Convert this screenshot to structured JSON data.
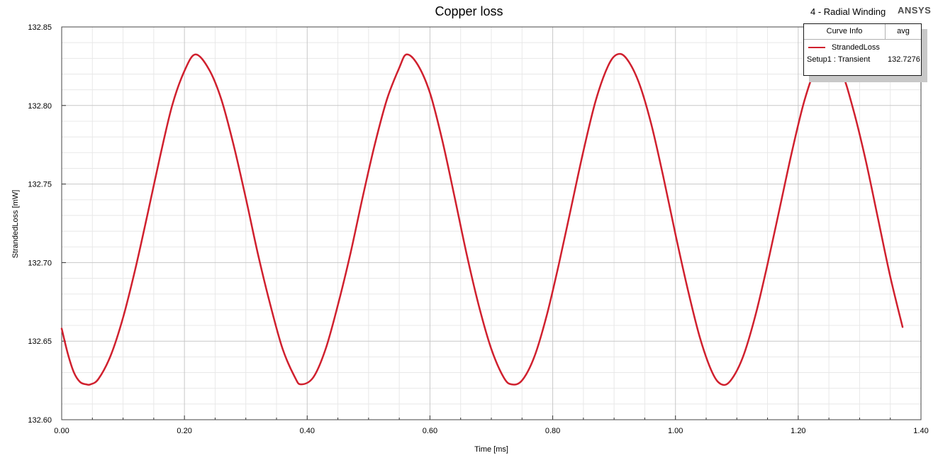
{
  "header": {
    "project": "4 - Radial Winding",
    "brand": "ANSYS"
  },
  "legend": {
    "col_curve": "Curve Info",
    "col_stat": "avg",
    "series_name": "StrandedLoss",
    "setup": "Setup1 : Transient",
    "avg_value": "132.7276"
  },
  "colors": {
    "series": "#d0202e",
    "grid_major": "#c8c8c8",
    "grid_minor": "#e8e8e8"
  },
  "chart_data": {
    "type": "line",
    "title": "Copper loss",
    "xlabel": "Time [ms]",
    "ylabel": "StrandedLoss [mW]",
    "xlim": [
      0,
      1.4
    ],
    "ylim": [
      132.6,
      132.85
    ],
    "x_ticks": [
      "0.00",
      "0.20",
      "0.40",
      "0.60",
      "0.80",
      "1.00",
      "1.20",
      "1.40"
    ],
    "y_ticks": [
      "132.60",
      "132.65",
      "132.70",
      "132.75",
      "132.80",
      "132.85"
    ],
    "grid": true,
    "legend_position": "top-right",
    "series": [
      {
        "name": "StrandedLoss",
        "x": [
          0.0,
          0.01,
          0.02,
          0.03,
          0.04,
          0.047,
          0.06,
          0.08,
          0.1,
          0.12,
          0.14,
          0.16,
          0.18,
          0.2,
          0.218,
          0.24,
          0.26,
          0.28,
          0.3,
          0.32,
          0.34,
          0.36,
          0.38,
          0.39,
          0.41,
          0.43,
          0.45,
          0.47,
          0.49,
          0.51,
          0.53,
          0.55,
          0.562,
          0.58,
          0.6,
          0.62,
          0.64,
          0.66,
          0.68,
          0.7,
          0.72,
          0.733,
          0.75,
          0.77,
          0.79,
          0.81,
          0.83,
          0.85,
          0.87,
          0.89,
          0.905,
          0.92,
          0.94,
          0.96,
          0.98,
          1.0,
          1.02,
          1.04,
          1.06,
          1.075,
          1.09,
          1.11,
          1.13,
          1.15,
          1.17,
          1.19,
          1.21,
          1.23,
          1.248,
          1.27,
          1.29,
          1.31,
          1.33,
          1.35,
          1.37
        ],
        "y": [
          132.658,
          132.642,
          132.63,
          132.624,
          132.6225,
          132.6225,
          132.626,
          132.641,
          132.665,
          132.696,
          132.731,
          132.767,
          132.8,
          132.822,
          132.8325,
          132.823,
          132.804,
          132.775,
          132.741,
          132.705,
          132.673,
          132.645,
          132.627,
          132.6225,
          132.627,
          132.645,
          132.673,
          132.705,
          132.741,
          132.775,
          132.804,
          132.824,
          132.8325,
          132.826,
          132.808,
          132.778,
          132.742,
          132.705,
          132.672,
          132.645,
          132.627,
          132.6225,
          132.625,
          132.64,
          132.666,
          132.699,
          132.735,
          132.771,
          132.803,
          132.825,
          132.8325,
          132.83,
          132.815,
          132.789,
          132.755,
          132.718,
          132.683,
          132.652,
          132.63,
          132.6225,
          132.625,
          132.64,
          132.666,
          132.699,
          132.735,
          132.771,
          132.803,
          132.825,
          132.8325,
          132.822,
          132.797,
          132.765,
          132.728,
          132.691,
          132.659
        ]
      }
    ]
  }
}
